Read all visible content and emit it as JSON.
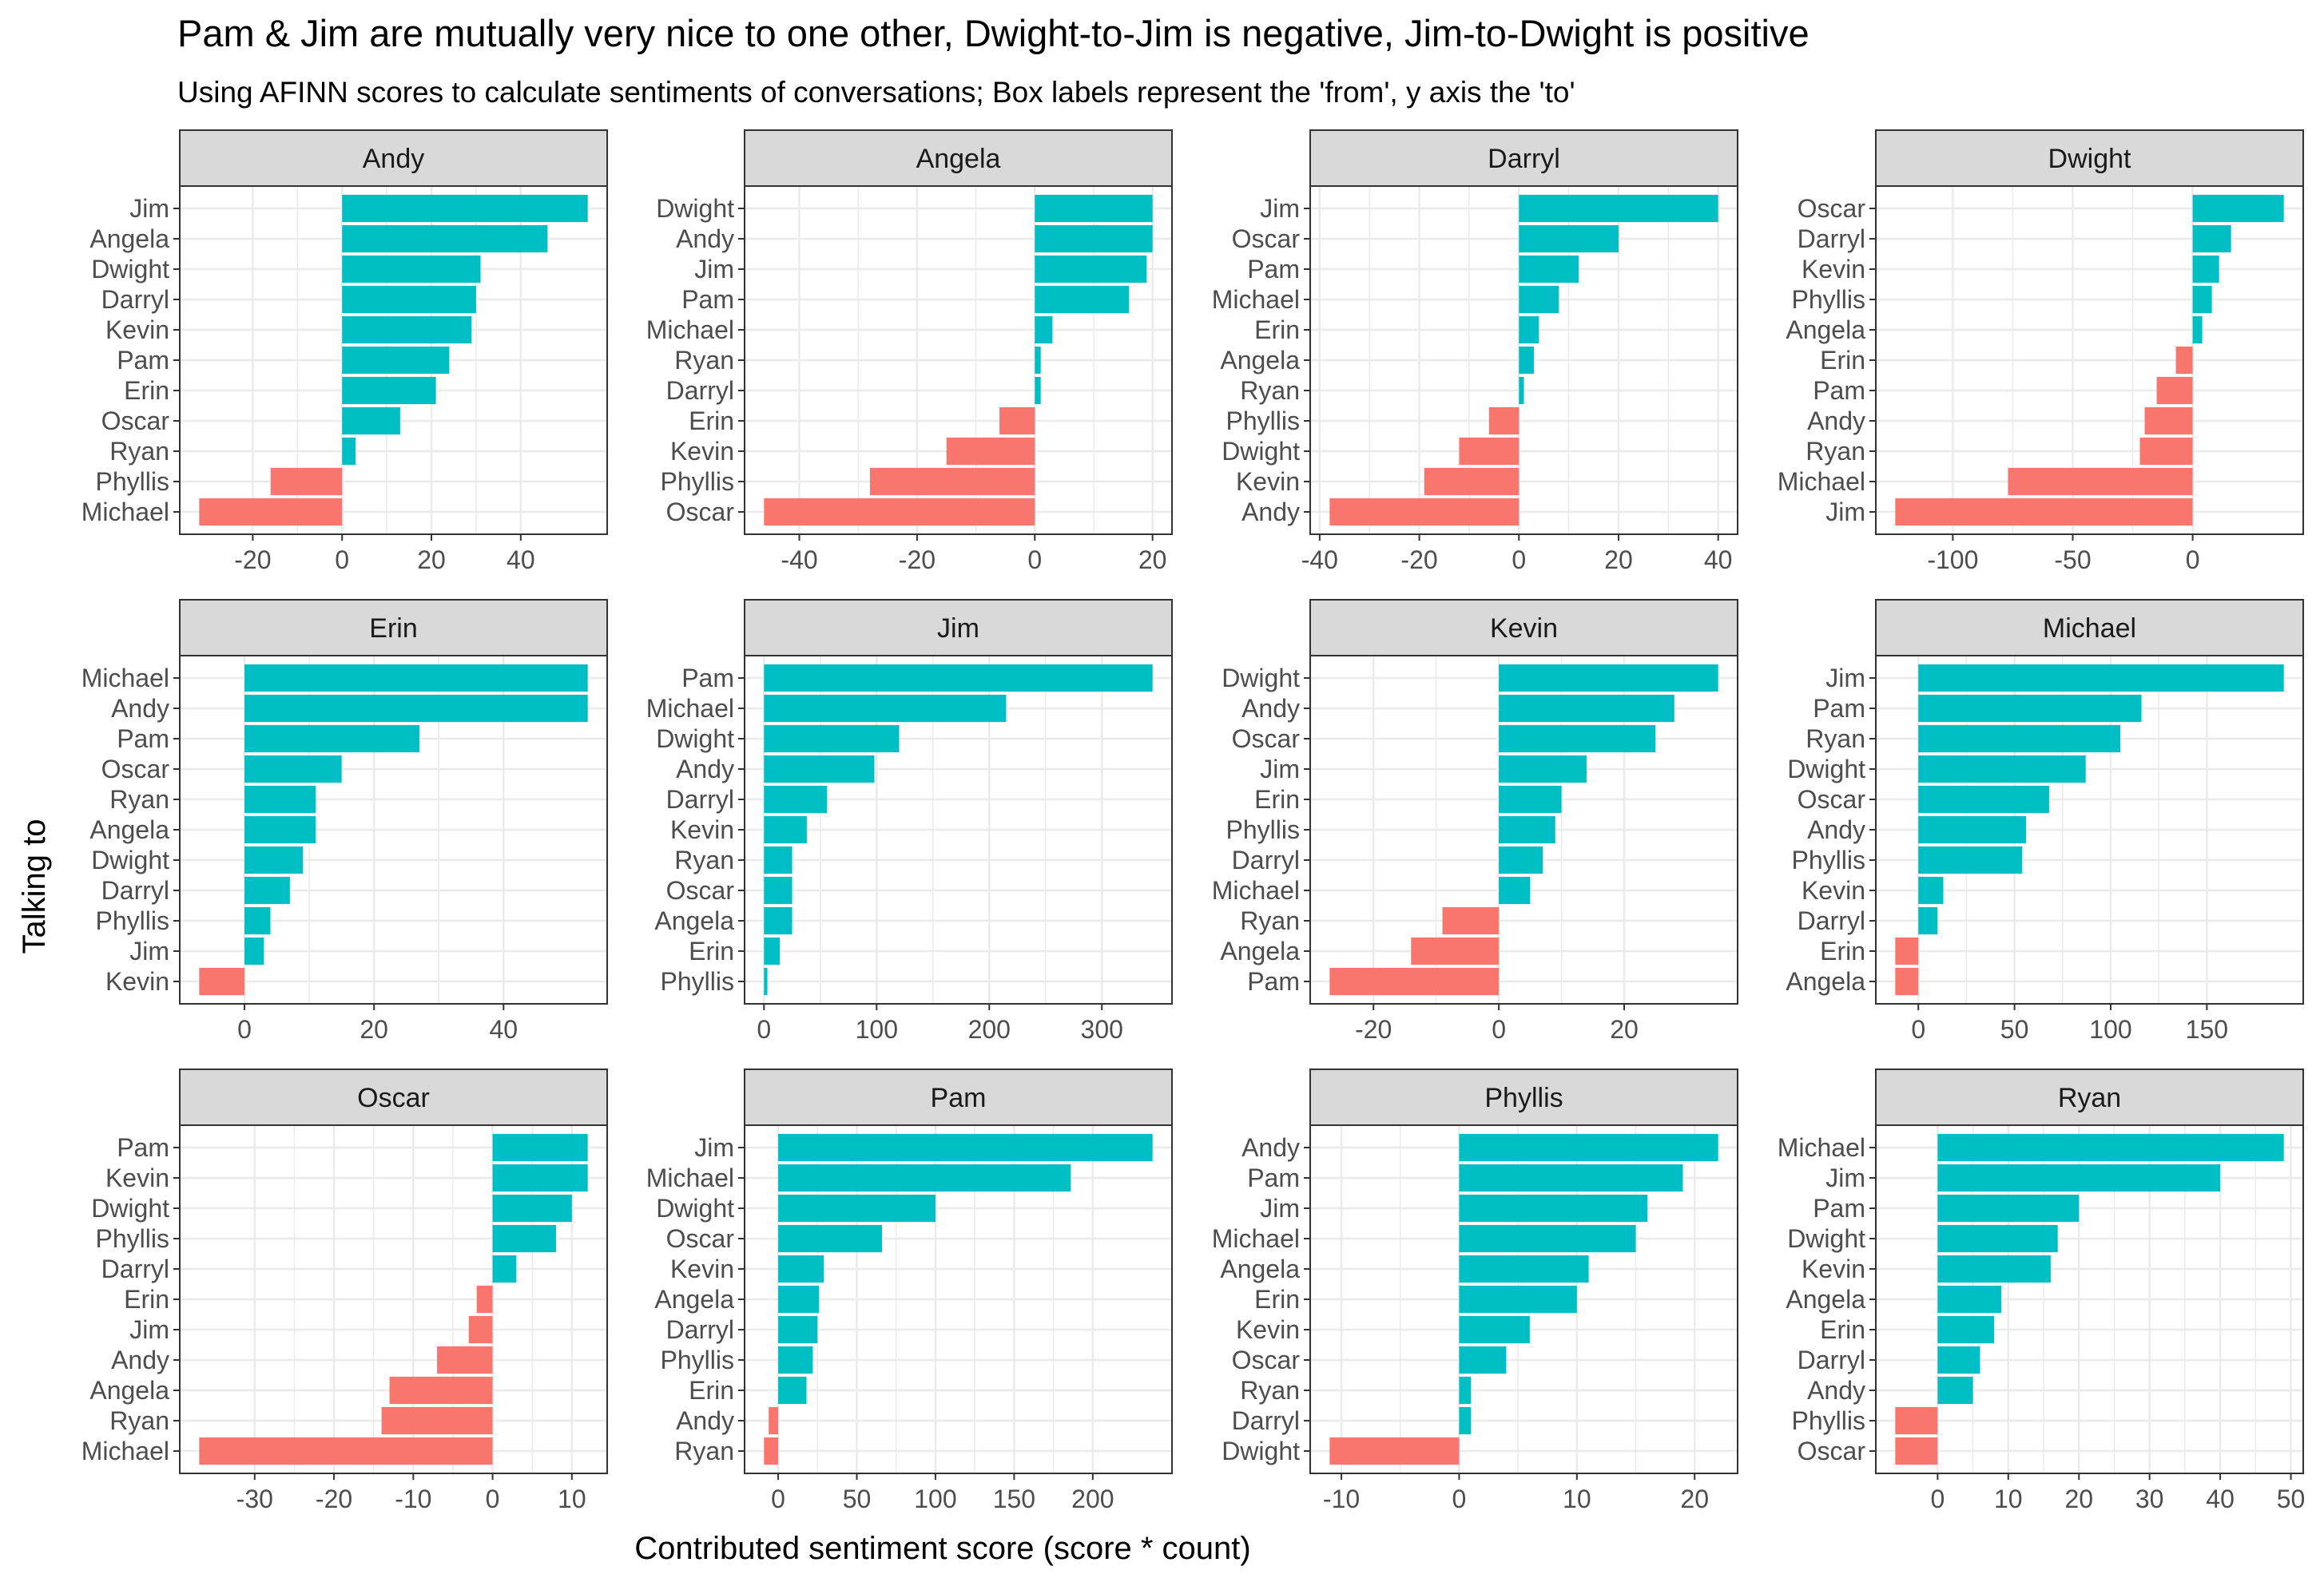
{
  "chart_data": {
    "type": "bar",
    "title": "Pam & Jim are mutually very nice to one other, Dwight-to-Jim is negative, Jim-to-Dwight is positive",
    "subtitle": "Using AFINN scores to calculate sentiments of conversations; Box labels represent the 'from', y axis the 'to'",
    "xlabel": "Contributed sentiment score (score * count)",
    "ylabel": "Talking to",
    "grid": true,
    "legend": "none",
    "colors": {
      "positive": "#00BFC4",
      "negative": "#F8766D",
      "strip": "#D9D9D9",
      "grid": "#EBEBEB"
    },
    "panels": [
      {
        "from": "Andy",
        "xlim": [
          -32,
          55
        ],
        "ticks": [
          -20,
          0,
          20,
          40
        ],
        "categories": [
          "Jim",
          "Angela",
          "Dwight",
          "Darryl",
          "Kevin",
          "Pam",
          "Erin",
          "Oscar",
          "Ryan",
          "Phyllis",
          "Michael"
        ],
        "values": [
          55,
          46,
          31,
          30,
          29,
          24,
          21,
          13,
          3,
          -16,
          -32
        ]
      },
      {
        "from": "Angela",
        "xlim": [
          -46,
          20
        ],
        "ticks": [
          -40,
          -20,
          0,
          20
        ],
        "categories": [
          "Dwight",
          "Andy",
          "Jim",
          "Pam",
          "Michael",
          "Ryan",
          "Darryl",
          "Erin",
          "Kevin",
          "Phyllis",
          "Oscar"
        ],
        "values": [
          20,
          20,
          19,
          16,
          3,
          1,
          1,
          -6,
          -15,
          -28,
          -46
        ]
      },
      {
        "from": "Darryl",
        "xlim": [
          -38,
          40
        ],
        "ticks": [
          -40,
          -20,
          0,
          20,
          40
        ],
        "categories": [
          "Jim",
          "Oscar",
          "Pam",
          "Michael",
          "Erin",
          "Angela",
          "Ryan",
          "Phyllis",
          "Dwight",
          "Kevin",
          "Andy"
        ],
        "values": [
          40,
          20,
          12,
          8,
          4,
          3,
          1,
          -6,
          -12,
          -19,
          -38
        ]
      },
      {
        "from": "Dwight",
        "xlim": [
          -124,
          38
        ],
        "ticks": [
          -100,
          -50,
          0
        ],
        "categories": [
          "Oscar",
          "Darryl",
          "Kevin",
          "Phyllis",
          "Angela",
          "Erin",
          "Pam",
          "Andy",
          "Ryan",
          "Michael",
          "Jim"
        ],
        "values": [
          38,
          16,
          11,
          8,
          4,
          -7,
          -15,
          -20,
          -22,
          -77,
          -124
        ]
      },
      {
        "from": "Erin",
        "xlim": [
          -7,
          53
        ],
        "ticks": [
          0,
          20,
          40
        ],
        "categories": [
          "Michael",
          "Andy",
          "Pam",
          "Oscar",
          "Ryan",
          "Angela",
          "Dwight",
          "Darryl",
          "Phyllis",
          "Jim",
          "Kevin"
        ],
        "values": [
          53,
          53,
          27,
          15,
          11,
          11,
          9,
          7,
          4,
          3,
          -7
        ]
      },
      {
        "from": "Jim",
        "xlim": [
          0,
          345
        ],
        "ticks": [
          0,
          100,
          200,
          300
        ],
        "categories": [
          "Pam",
          "Michael",
          "Dwight",
          "Andy",
          "Darryl",
          "Kevin",
          "Ryan",
          "Oscar",
          "Angela",
          "Erin",
          "Phyllis"
        ],
        "values": [
          345,
          215,
          120,
          98,
          56,
          38,
          25,
          25,
          25,
          14,
          3
        ]
      },
      {
        "from": "Kevin",
        "xlim": [
          -27,
          35
        ],
        "ticks": [
          -20,
          0,
          20
        ],
        "categories": [
          "Dwight",
          "Andy",
          "Oscar",
          "Jim",
          "Erin",
          "Phyllis",
          "Darryl",
          "Michael",
          "Ryan",
          "Angela",
          "Pam"
        ],
        "values": [
          35,
          28,
          25,
          14,
          10,
          9,
          7,
          5,
          -9,
          -14,
          -27
        ]
      },
      {
        "from": "Michael",
        "xlim": [
          -12,
          190
        ],
        "ticks": [
          0,
          50,
          100,
          150
        ],
        "categories": [
          "Jim",
          "Pam",
          "Ryan",
          "Dwight",
          "Oscar",
          "Andy",
          "Phyllis",
          "Kevin",
          "Darryl",
          "Erin",
          "Angela"
        ],
        "values": [
          190,
          116,
          105,
          87,
          68,
          56,
          54,
          13,
          10,
          -12,
          -12
        ]
      },
      {
        "from": "Oscar",
        "xlim": [
          -37,
          12
        ],
        "ticks": [
          -30,
          -20,
          -10,
          0,
          10
        ],
        "categories": [
          "Pam",
          "Kevin",
          "Dwight",
          "Phyllis",
          "Darryl",
          "Erin",
          "Jim",
          "Andy",
          "Angela",
          "Ryan",
          "Michael"
        ],
        "values": [
          12,
          12,
          10,
          8,
          3,
          -2,
          -3,
          -7,
          -13,
          -14,
          -37
        ]
      },
      {
        "from": "Pam",
        "xlim": [
          -9,
          238
        ],
        "ticks": [
          0,
          50,
          100,
          150,
          200
        ],
        "categories": [
          "Jim",
          "Michael",
          "Dwight",
          "Oscar",
          "Kevin",
          "Angela",
          "Darryl",
          "Phyllis",
          "Erin",
          "Andy",
          "Ryan"
        ],
        "values": [
          238,
          186,
          100,
          66,
          29,
          26,
          25,
          22,
          18,
          -6,
          -9
        ]
      },
      {
        "from": "Phyllis",
        "xlim": [
          -11,
          22
        ],
        "ticks": [
          -10,
          0,
          10,
          20
        ],
        "categories": [
          "Andy",
          "Pam",
          "Jim",
          "Michael",
          "Angela",
          "Erin",
          "Kevin",
          "Oscar",
          "Ryan",
          "Darryl",
          "Dwight"
        ],
        "values": [
          22,
          19,
          16,
          15,
          11,
          10,
          6,
          4,
          1,
          1,
          -11
        ]
      },
      {
        "from": "Ryan",
        "xlim": [
          -6,
          49
        ],
        "ticks": [
          0,
          10,
          20,
          30,
          40,
          50
        ],
        "categories": [
          "Michael",
          "Jim",
          "Pam",
          "Dwight",
          "Kevin",
          "Angela",
          "Erin",
          "Darryl",
          "Andy",
          "Phyllis",
          "Oscar"
        ],
        "values": [
          49,
          40,
          20,
          17,
          16,
          9,
          8,
          6,
          5,
          -6,
          -6
        ]
      }
    ]
  }
}
